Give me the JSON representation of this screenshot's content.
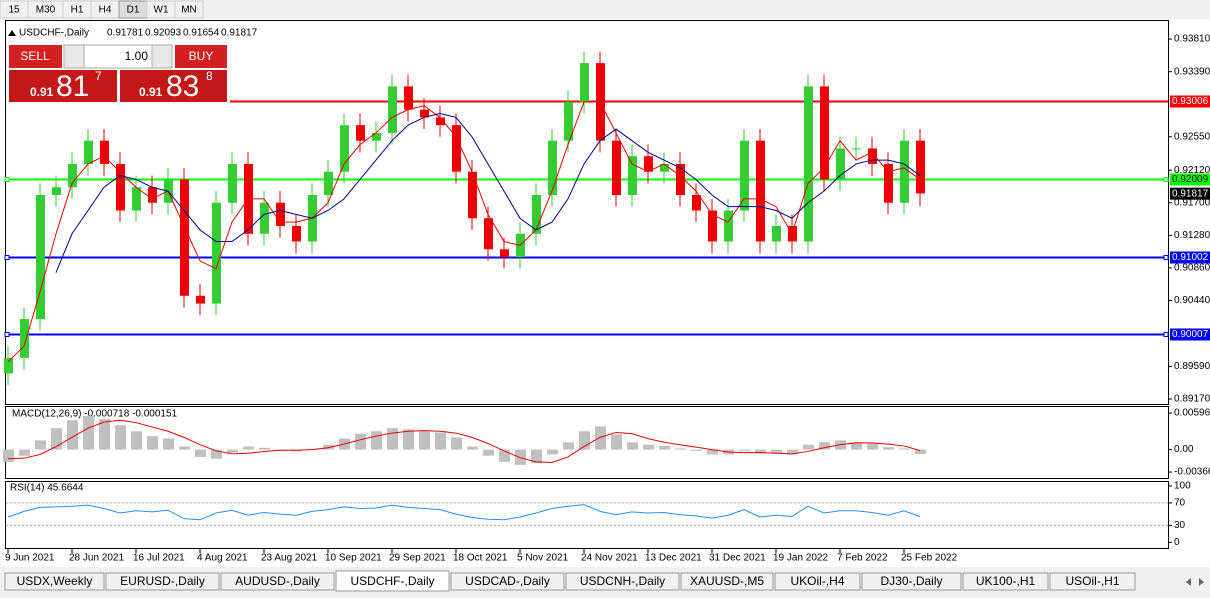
{
  "toolbar": {
    "timeframes": [
      "15",
      "M30",
      "H1",
      "H4",
      "D1",
      "W1",
      "MN"
    ],
    "active": "D1"
  },
  "trade_panel": {
    "sell": "SELL",
    "lot": "1.00",
    "buy": "BUY",
    "sell_big": "0.91",
    "sell_main": "81",
    "sell_sup": "7",
    "buy_big": "0.91",
    "buy_main": "83",
    "buy_sup": "8"
  },
  "chart_data": [
    {
      "type": "candlestick",
      "title": "USDCHF-,Daily",
      "ohlc_values": [
        0.91781,
        0.92093,
        0.91654,
        0.91817
      ],
      "categories": [
        "9 Jun 2021",
        null,
        null,
        null,
        "28 Jun 2021",
        null,
        null,
        null,
        "16 Jul 2021",
        null,
        null,
        null,
        "4 Aug 2021",
        null,
        null,
        null,
        "23 Aug 2021",
        null,
        null,
        null,
        "10 Sep 2021",
        null,
        null,
        null,
        "29 Sep 2021",
        null,
        null,
        null,
        "18 Oct 2021",
        null,
        null,
        null,
        "5 Nov 2021",
        null,
        null,
        null,
        "24 Nov 2021",
        null,
        null,
        null,
        "13 Dec 2021",
        null,
        null,
        null,
        "31 Dec 2021",
        null,
        null,
        null,
        "19 Jan 2022",
        null,
        null,
        null,
        "7 Feb 2022",
        null,
        null,
        null,
        "25 Feb 2022",
        null
      ],
      "open": [
        0.895,
        0.897,
        0.902,
        0.918,
        0.919,
        0.922,
        0.925,
        0.922,
        0.916,
        0.919,
        0.917,
        0.92,
        0.905,
        0.904,
        0.917,
        0.922,
        0.913,
        0.917,
        0.914,
        0.912,
        0.918,
        0.921,
        0.927,
        0.925,
        0.926,
        0.932,
        0.929,
        0.928,
        0.927,
        0.921,
        0.915,
        0.911,
        0.91,
        0.913,
        0.918,
        0.925,
        0.93,
        0.935,
        0.925,
        0.918,
        0.923,
        0.921,
        0.922,
        0.918,
        0.916,
        0.912,
        0.916,
        0.925,
        0.912,
        0.914,
        0.912,
        0.932,
        0.92,
        0.924,
        0.924,
        0.922,
        0.917,
        0.925
      ],
      "high": [
        0.8985,
        0.9035,
        0.9195,
        0.9205,
        0.9235,
        0.9265,
        0.9265,
        0.9235,
        0.9205,
        0.9205,
        0.9215,
        0.9215,
        0.9065,
        0.9185,
        0.9235,
        0.9235,
        0.9185,
        0.9185,
        0.9155,
        0.9195,
        0.9225,
        0.9285,
        0.9285,
        0.9275,
        0.9335,
        0.9335,
        0.9305,
        0.9295,
        0.9285,
        0.9225,
        0.9165,
        0.9125,
        0.9145,
        0.9195,
        0.9265,
        0.9315,
        0.9365,
        0.9365,
        0.9265,
        0.9245,
        0.9245,
        0.9235,
        0.9235,
        0.9195,
        0.9175,
        0.9175,
        0.9265,
        0.9265,
        0.9155,
        0.9155,
        0.9335,
        0.9335,
        0.9255,
        0.9255,
        0.9255,
        0.9235,
        0.9265,
        0.9265
      ],
      "low": [
        0.8935,
        0.8955,
        0.9005,
        0.9165,
        0.9175,
        0.9205,
        0.9205,
        0.9145,
        0.9145,
        0.9155,
        0.9155,
        0.9035,
        0.9025,
        0.9025,
        0.9155,
        0.9115,
        0.9115,
        0.9125,
        0.9105,
        0.9105,
        0.9165,
        0.9195,
        0.9235,
        0.9235,
        0.9245,
        0.9275,
        0.9265,
        0.9255,
        0.9195,
        0.9135,
        0.9095,
        0.9085,
        0.9085,
        0.9115,
        0.9165,
        0.9235,
        0.9285,
        0.9235,
        0.9165,
        0.9165,
        0.9195,
        0.9195,
        0.9165,
        0.9145,
        0.9105,
        0.9105,
        0.9145,
        0.9105,
        0.9105,
        0.9105,
        0.9105,
        0.9185,
        0.9185,
        0.9225,
        0.9205,
        0.9155,
        0.9155,
        0.9165
      ],
      "close": [
        0.897,
        0.902,
        0.918,
        0.919,
        0.922,
        0.925,
        0.922,
        0.916,
        0.919,
        0.917,
        0.92,
        0.905,
        0.904,
        0.917,
        0.922,
        0.913,
        0.917,
        0.914,
        0.912,
        0.918,
        0.921,
        0.927,
        0.925,
        0.926,
        0.932,
        0.929,
        0.928,
        0.927,
        0.921,
        0.915,
        0.911,
        0.91,
        0.913,
        0.918,
        0.925,
        0.93,
        0.935,
        0.925,
        0.918,
        0.923,
        0.921,
        0.922,
        0.918,
        0.916,
        0.912,
        0.916,
        0.925,
        0.912,
        0.914,
        0.912,
        0.932,
        0.92,
        0.924,
        0.924,
        0.922,
        0.917,
        0.925,
        0.9182
      ],
      "up_color": "#32cd32",
      "down_color": "#ee0000",
      "lines": [
        {
          "color": "#ee0000",
          "values": [
            0.8965,
            0.8985,
            0.9055,
            0.913,
            0.9195,
            0.922,
            0.923,
            0.921,
            0.919,
            0.9175,
            0.9185,
            0.914,
            0.9095,
            0.9085,
            0.9145,
            0.9175,
            0.9175,
            0.9145,
            0.9145,
            0.915,
            0.917,
            0.922,
            0.9245,
            0.926,
            0.928,
            0.929,
            0.9295,
            0.928,
            0.9255,
            0.921,
            0.9155,
            0.912,
            0.9115,
            0.9135,
            0.9185,
            0.9245,
            0.93,
            0.93,
            0.926,
            0.922,
            0.921,
            0.922,
            0.9205,
            0.9185,
            0.9155,
            0.9145,
            0.9175,
            0.9175,
            0.9165,
            0.913,
            0.9195,
            0.9215,
            0.925,
            0.9225,
            0.9235,
            0.921,
            0.9215,
            0.92
          ]
        },
        {
          "color": "#00008b",
          "values": [
            null,
            null,
            null,
            0.908,
            0.913,
            0.916,
            0.919,
            0.9205,
            0.92,
            0.919,
            0.9185,
            0.916,
            0.9135,
            0.912,
            0.912,
            0.9135,
            0.9155,
            0.916,
            0.9155,
            0.915,
            0.916,
            0.9175,
            0.92,
            0.9225,
            0.925,
            0.927,
            0.928,
            0.9285,
            0.928,
            0.9255,
            0.922,
            0.9185,
            0.915,
            0.9135,
            0.9145,
            0.9175,
            0.922,
            0.925,
            0.9265,
            0.925,
            0.9235,
            0.9225,
            0.9215,
            0.92,
            0.918,
            0.9165,
            0.9165,
            0.9165,
            0.916,
            0.915,
            0.917,
            0.9185,
            0.9205,
            0.922,
            0.9225,
            0.9225,
            0.922,
            0.9205
          ]
        }
      ],
      "levels": [
        {
          "value": 0.93006,
          "color": "#ff0000"
        },
        {
          "value": 0.92009,
          "color": "#00ff00"
        },
        {
          "value": 0.91002,
          "color": "#0000ff"
        },
        {
          "value": 0.90007,
          "color": "#0000ff"
        }
      ],
      "current_price": 0.91817,
      "ylim": [
        0.89105,
        0.94056
      ],
      "yticks": [
        {
          "value": 0.9381,
          "label": "0.93810"
        },
        {
          "value": 0.9339,
          "label": "0.93390"
        },
        {
          "value": 0.9255,
          "label": "0.92550"
        },
        {
          "value": 0.9212,
          "label": "0.92120"
        },
        {
          "value": 0.917,
          "label": "0.91700"
        },
        {
          "value": 0.9128,
          "label": "0.91280"
        },
        {
          "value": 0.9086,
          "label": "0.90860"
        },
        {
          "value": 0.9044,
          "label": "0.90440"
        },
        {
          "value": 0.8959,
          "label": "0.89590"
        },
        {
          "value": 0.8917,
          "label": "0.89170"
        }
      ]
    },
    {
      "type": "macd",
      "title": "MACD(12,26,9) -0.000718 -0.000151",
      "histogram": {
        "color": "#c0c0c0",
        "values": [
          -0.002,
          -0.001,
          0.0015,
          0.0035,
          0.0048,
          0.0055,
          0.005,
          0.004,
          0.003,
          0.0022,
          0.0018,
          0.0005,
          -0.0012,
          -0.0015,
          -0.0005,
          0.0005,
          0.0003,
          0.0,
          -0.0003,
          0.0,
          0.0008,
          0.0018,
          0.0026,
          0.003,
          0.0035,
          0.0033,
          0.003,
          0.0028,
          0.002,
          0.0005,
          -0.001,
          -0.002,
          -0.0025,
          -0.0022,
          -0.0008,
          0.0012,
          0.003,
          0.0038,
          0.0025,
          0.0012,
          0.0008,
          0.0006,
          0.0002,
          -0.0002,
          -0.0008,
          -0.0008,
          -0.0002,
          -0.0006,
          -0.0006,
          -0.0008,
          0.0008,
          0.0012,
          0.0015,
          0.0012,
          0.001,
          0.0004,
          0.0002,
          -0.000718
        ]
      },
      "signal": {
        "color": "#ee0000",
        "values": [
          -0.0015,
          -0.0014,
          -0.0008,
          0.0005,
          0.002,
          0.0035,
          0.0045,
          0.0048,
          0.0044,
          0.0037,
          0.003,
          0.002,
          0.0008,
          -0.0002,
          -0.0007,
          -0.0006,
          -0.0003,
          -0.0001,
          -0.0001,
          0.0,
          0.0003,
          0.0009,
          0.0016,
          0.0022,
          0.0027,
          0.003,
          0.0031,
          0.003,
          0.0027,
          0.002,
          0.001,
          -0.0002,
          -0.0013,
          -0.002,
          -0.0021,
          -0.0012,
          0.0005,
          0.002,
          0.0028,
          0.0026,
          0.0018,
          0.0012,
          0.0008,
          0.0004,
          0.0,
          -0.0004,
          -0.0005,
          -0.0005,
          -0.0006,
          -0.0007,
          -0.0003,
          0.0003,
          0.0008,
          0.0011,
          0.0011,
          0.0009,
          0.0006,
          -0.000151
        ]
      },
      "ylim": [
        -0.0048,
        0.00712
      ],
      "yticks": [
        0.005963,
        {
          "value": 0,
          "label": "0.00"
        },
        -0.003664
      ]
    },
    {
      "type": "rsi",
      "title": "RSI(14) 45.6644",
      "color": "#1e90ff",
      "values": [
        45,
        55,
        62,
        63,
        64,
        66,
        60,
        52,
        56,
        54,
        57,
        42,
        40,
        52,
        57,
        48,
        53,
        50,
        48,
        55,
        58,
        63,
        60,
        61,
        66,
        62,
        60,
        58,
        50,
        44,
        41,
        40,
        45,
        52,
        60,
        64,
        67,
        55,
        49,
        54,
        52,
        53,
        49,
        47,
        43,
        48,
        58,
        45,
        48,
        46,
        64,
        52,
        56,
        56,
        53,
        48,
        56,
        45.6644
      ],
      "levels": [
        70,
        30
      ],
      "ylim": [
        -12,
        109
      ],
      "yticks": [
        100,
        70,
        30,
        0
      ]
    }
  ],
  "tabs": [
    "USDX,Weekly",
    "EURUSD-,Daily",
    "AUDUSD-,Daily",
    "USDCHF-,Daily",
    "USDCAD-,Daily",
    "USDCNH-,Daily",
    "XAUUSD-,M5",
    "UKOil-,H4",
    "DJ30-,Daily",
    "UK100-,H1",
    "USOil-,H1"
  ],
  "active_tab": "USDCHF-,Daily"
}
